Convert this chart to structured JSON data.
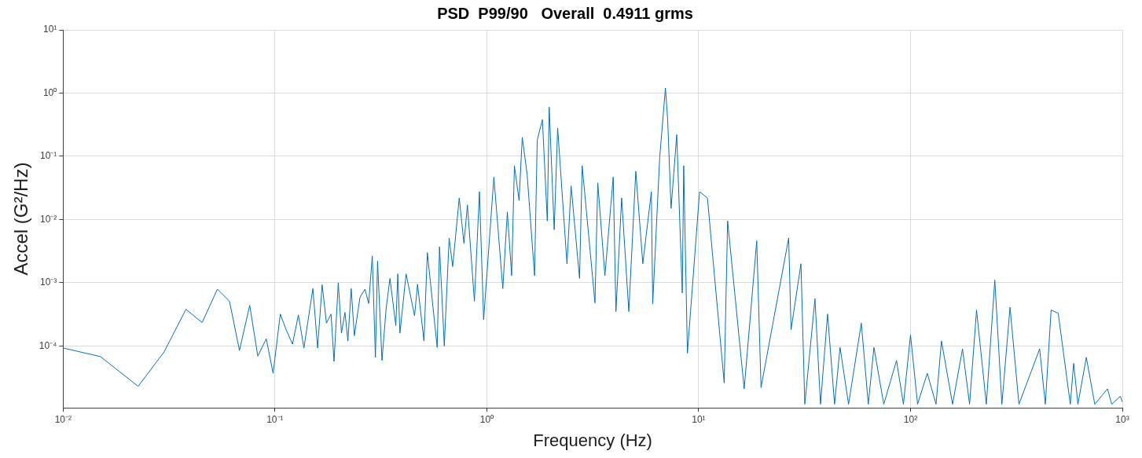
{
  "chart_data": {
    "type": "line",
    "title": "PSD  P99/90   Overall  0.4911 grms",
    "xlabel": "Frequency (Hz)",
    "ylabel": "Accel (G²/Hz)",
    "log": "xy",
    "grid": true,
    "legend": false,
    "marker": "none",
    "line_style": "solid",
    "xlim": [
      0.01,
      1000
    ],
    "ylim": [
      1.05e-05,
      10
    ],
    "xticks": [
      {
        "value": 0.01,
        "label": "10⁻²"
      },
      {
        "value": 0.1,
        "label": "10⁻¹"
      },
      {
        "value": 1,
        "label": "10⁰"
      },
      {
        "value": 10,
        "label": "10¹"
      },
      {
        "value": 100,
        "label": "10²"
      },
      {
        "value": 1000,
        "label": "10³"
      }
    ],
    "yticks": [
      {
        "value": 0.0001,
        "label": "10⁻⁴"
      },
      {
        "value": 0.001,
        "label": "10⁻³"
      },
      {
        "value": 0.01,
        "label": "10⁻²"
      },
      {
        "value": 0.1,
        "label": "10⁻¹"
      },
      {
        "value": 1,
        "label": "10⁰"
      },
      {
        "value": 10,
        "label": "10¹"
      }
    ],
    "series": [
      {
        "color": "#0072bd",
        "x": [
          0.01,
          0.015,
          0.0226,
          0.03,
          0.038,
          0.0453,
          0.0535,
          0.061,
          0.068,
          0.076,
          0.083,
          0.091,
          0.098,
          0.106,
          0.113,
          0.121,
          0.129,
          0.137,
          0.151,
          0.159,
          0.167,
          0.175,
          0.184,
          0.19,
          0.199,
          0.206,
          0.214,
          0.221,
          0.229,
          0.237,
          0.252,
          0.266,
          0.277,
          0.288,
          0.298,
          0.305,
          0.32,
          0.335,
          0.349,
          0.372,
          0.38,
          0.389,
          0.416,
          0.456,
          0.471,
          0.505,
          0.524,
          0.583,
          0.598,
          0.63,
          0.664,
          0.69,
          0.741,
          0.78,
          0.81,
          0.874,
          0.923,
          0.966,
          1.08,
          1.19,
          1.25,
          1.31,
          1.35,
          1.42,
          1.47,
          1.55,
          1.68,
          1.73,
          1.83,
          1.93,
          1.97,
          2.08,
          2.16,
          2.39,
          2.5,
          2.74,
          2.82,
          3.24,
          3.34,
          3.61,
          3.95,
          4.07,
          4.33,
          4.68,
          5.05,
          5.45,
          5.98,
          6.07,
          6.55,
          6.97,
          7.14,
          7.41,
          7.88,
          8.37,
          8.5,
          8.85,
          10.1,
          11,
          13.2,
          13.7,
          16.4,
          18.8,
          19.7,
          26.6,
          27.3,
          30.4,
          31.7,
          35.4,
          37.6,
          40.6,
          43.8,
          46.5,
          51,
          58.6,
          63.2,
          67.2,
          74.8,
          85.9,
          92.6,
          100,
          108,
          120,
          132,
          140,
          158,
          176,
          190,
          205,
          228,
          250,
          270,
          295,
          325,
          407,
          433,
          461,
          498,
          568,
          589,
          617,
          676,
          741,
          851,
          891,
          978,
          1000
        ],
        "values": [
          9.3e-05,
          6.8e-05,
          2.3e-05,
          8.1e-05,
          0.00038,
          0.000235,
          0.00079,
          0.00051,
          8.5e-05,
          0.00044,
          6.9e-05,
          0.00013,
          3.7e-05,
          0.00032,
          0.00018,
          0.000107,
          0.00031,
          9.3e-05,
          0.00081,
          9.3e-05,
          0.00093,
          0.00023,
          0.00032,
          5.7e-05,
          0.001,
          0.00016,
          0.00034,
          0.00012,
          0.00081,
          0.000145,
          0.00059,
          0.00079,
          0.00047,
          0.00265,
          6.6e-05,
          0.0022,
          5.9e-05,
          0.0004,
          0.00117,
          0.00021,
          0.00138,
          0.00016,
          0.00138,
          0.0003,
          0.00095,
          0.00012,
          0.003,
          9.5e-05,
          0.0037,
          0.0001,
          0.0051,
          0.0018,
          0.022,
          0.0042,
          0.017,
          0.00051,
          0.0275,
          0.00026,
          0.047,
          0.00081,
          0.0132,
          0.0013,
          0.071,
          0.02,
          0.2,
          0.052,
          0.0013,
          0.18,
          0.38,
          0.0095,
          0.6,
          0.0069,
          0.28,
          0.002,
          0.034,
          0.00117,
          0.071,
          0.00048,
          0.038,
          0.0013,
          0.047,
          0.00035,
          0.022,
          0.00035,
          0.058,
          0.002,
          0.0275,
          0.00046,
          0.098,
          1.2,
          0.38,
          0.015,
          0.22,
          0.00069,
          0.071,
          7.7e-05,
          0.0275,
          0.022,
          2.6e-05,
          0.0095,
          2.1e-05,
          0.0046,
          2.2e-05,
          0.0051,
          0.00018,
          0.002,
          1.2e-05,
          0.00056,
          1.2e-05,
          0.00032,
          1.2e-05,
          9.5e-05,
          1.2e-05,
          0.00023,
          1.2e-05,
          9.5e-05,
          1.2e-05,
          5.9e-05,
          1.2e-05,
          0.00015,
          1.2e-05,
          3.7e-05,
          1.2e-05,
          0.00012,
          1.2e-05,
          9e-05,
          1.2e-05,
          0.00037,
          1.2e-05,
          0.0011,
          1.2e-05,
          0.00041,
          1.2e-05,
          9e-05,
          1.2e-05,
          0.00037,
          0.00033,
          1.2e-05,
          5.3e-05,
          1.2e-05,
          6.6e-05,
          1.2e-05,
          2.1e-05,
          1.2e-05,
          1.6e-05,
          1.3e-05
        ]
      }
    ]
  }
}
